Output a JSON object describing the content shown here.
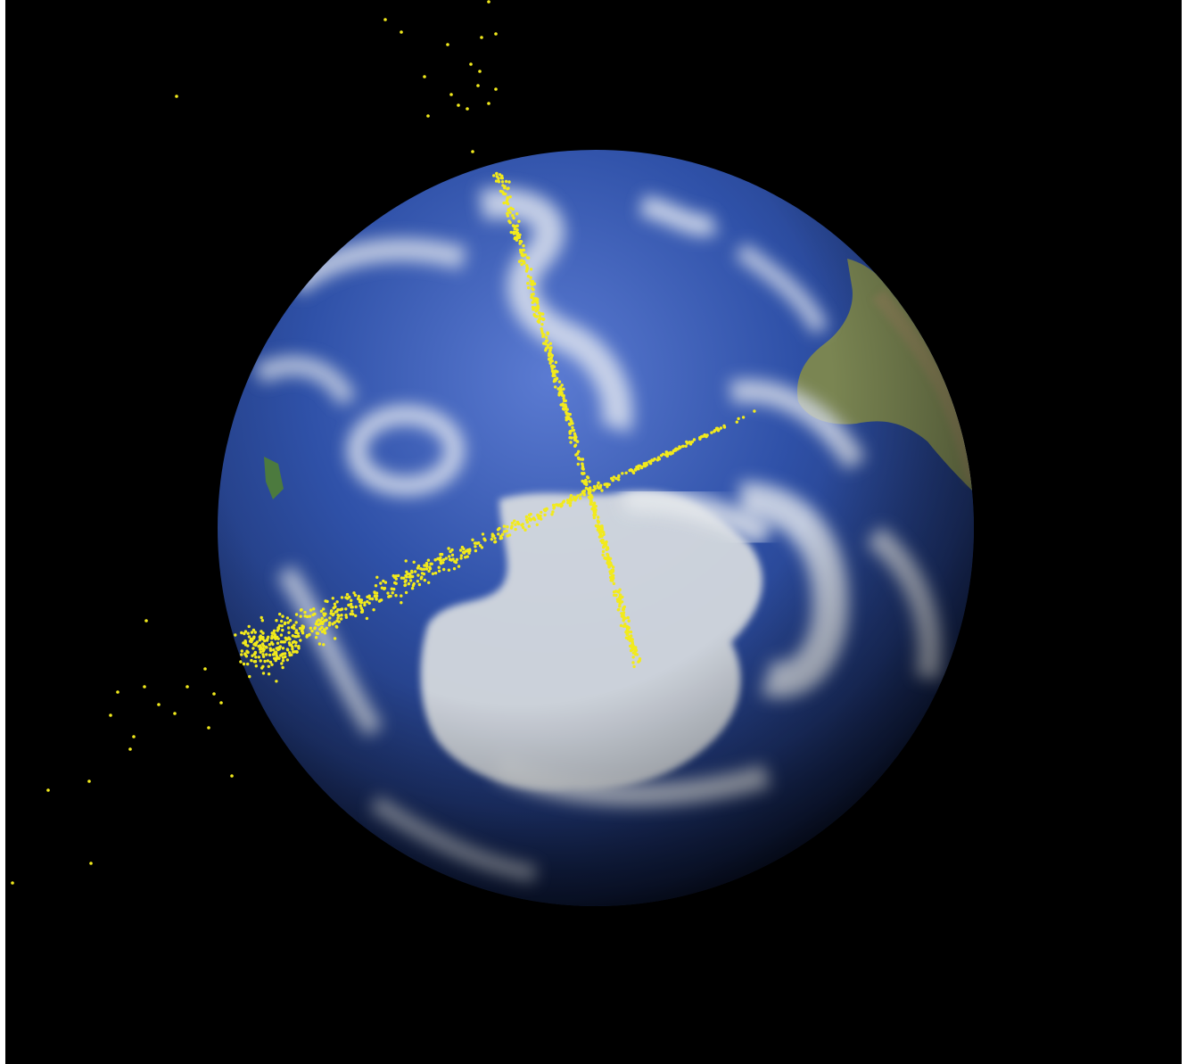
{
  "scene": {
    "subject": "earth-globe",
    "background_color": "#000000",
    "ocean_color": "#2a4a9a",
    "ocean_highlight_color": "#4f70c8",
    "cloud_color": "#e4e8ee",
    "land_color": "#6f7d4a",
    "ice_color": "#dfe3e6",
    "debris_color": "#f2ea1c",
    "debris_band_count": 2
  }
}
